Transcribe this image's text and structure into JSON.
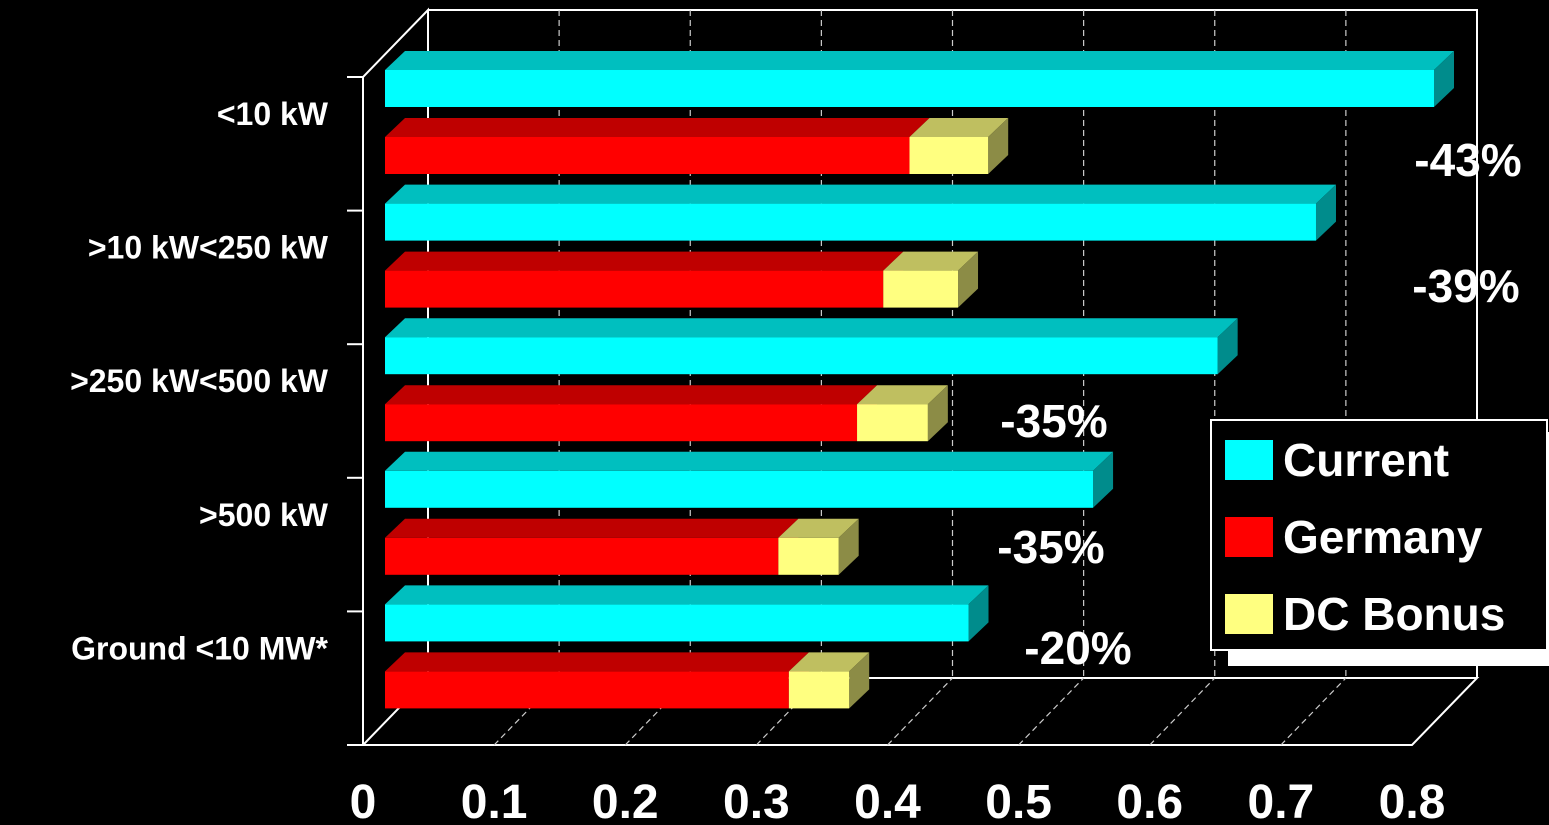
{
  "chart_data": {
    "type": "bar",
    "orientation": "horizontal",
    "stacked_series": [
      "Germany",
      "DC Bonus"
    ],
    "style": "3d",
    "categories": [
      "<10 kW",
      ">10 kW<250 kW",
      ">250 kW<500 kW",
      ">500 kW",
      "Ground <10 MW*"
    ],
    "series": [
      {
        "name": "Current",
        "color": "#00FFFF",
        "values": [
          0.8,
          0.71,
          0.635,
          0.54,
          0.445
        ]
      },
      {
        "name": "Germany",
        "color": "#FF0000",
        "values": [
          0.4,
          0.38,
          0.36,
          0.3,
          0.308
        ]
      },
      {
        "name": "DC Bonus",
        "color": "#FFFF80",
        "values": [
          0.06,
          0.057,
          0.054,
          0.046,
          0.046
        ]
      }
    ],
    "annotations": [
      "-43%",
      "-39%",
      "-35%",
      "-35%",
      "-20%"
    ],
    "xlim": [
      0,
      0.8
    ],
    "xticks": [
      "0",
      "0.1",
      "0.2",
      "0.3",
      "0.4",
      "0.5",
      "0.6",
      "0.7",
      "0.8"
    ],
    "grid": true,
    "legend_position": "right"
  }
}
